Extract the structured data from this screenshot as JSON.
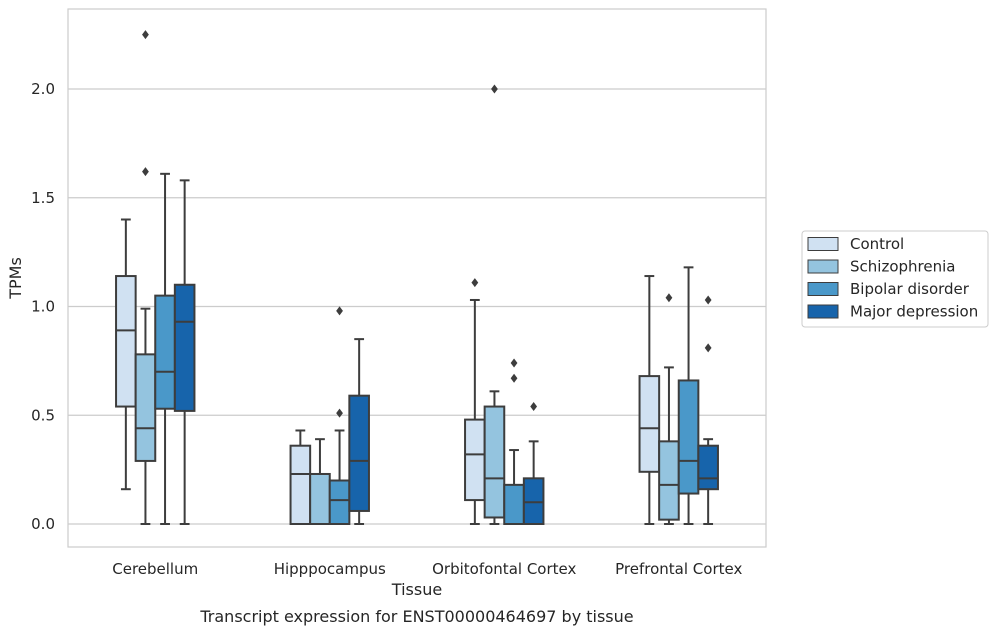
{
  "chart_data": {
    "type": "boxplot",
    "title": "",
    "caption": "Transcript expression for ENST00000464697 by tissue",
    "xlabel": "Tissue",
    "ylabel": "TPMs",
    "ylim": [
      -0.11,
      2.37
    ],
    "yticks": [
      0.0,
      0.5,
      1.0,
      1.5,
      2.0
    ],
    "ytick_labels": [
      "0.0",
      "0.5",
      "1.0",
      "1.5",
      "2.0"
    ],
    "grid": "horizontal",
    "legend_position": "right",
    "categories": [
      "Cerebellum",
      "Hipppocampus",
      "Orbitofontal Cortex",
      "Prefrontal Cortex"
    ],
    "series": [
      {
        "name": "Control",
        "color": "#d0e1f2",
        "boxes": [
          {
            "whislo": 0.16,
            "q1": 0.54,
            "med": 0.89,
            "q3": 1.14,
            "whishi": 1.4,
            "fliers": []
          },
          {
            "whislo": 0.0,
            "q1": 0.0,
            "med": 0.23,
            "q3": 0.36,
            "whishi": 0.43,
            "fliers": []
          },
          {
            "whislo": 0.0,
            "q1": 0.11,
            "med": 0.32,
            "q3": 0.48,
            "whishi": 1.03,
            "fliers": [
              1.11
            ]
          },
          {
            "whislo": 0.0,
            "q1": 0.24,
            "med": 0.44,
            "q3": 0.68,
            "whishi": 1.14,
            "fliers": []
          }
        ]
      },
      {
        "name": "Schizophrenia",
        "color": "#94c4df",
        "boxes": [
          {
            "whislo": 0.0,
            "q1": 0.29,
            "med": 0.44,
            "q3": 0.78,
            "whishi": 0.99,
            "fliers": [
              1.62,
              2.25
            ]
          },
          {
            "whislo": 0.0,
            "q1": 0.0,
            "med": 0.23,
            "q3": 0.23,
            "whishi": 0.39,
            "fliers": []
          },
          {
            "whislo": 0.0,
            "q1": 0.03,
            "med": 0.21,
            "q3": 0.54,
            "whishi": 0.61,
            "fliers": [
              2.0
            ]
          },
          {
            "whislo": 0.0,
            "q1": 0.02,
            "med": 0.18,
            "q3": 0.38,
            "whishi": 0.72,
            "fliers": [
              1.04
            ]
          }
        ]
      },
      {
        "name": "Bipolar disorder",
        "color": "#4a98c9",
        "boxes": [
          {
            "whislo": 0.0,
            "q1": 0.53,
            "med": 0.7,
            "q3": 1.05,
            "whishi": 1.61,
            "fliers": []
          },
          {
            "whislo": 0.0,
            "q1": 0.0,
            "med": 0.11,
            "q3": 0.2,
            "whishi": 0.43,
            "fliers": [
              0.51,
              0.98
            ]
          },
          {
            "whislo": 0.0,
            "q1": 0.0,
            "med": 0.0,
            "q3": 0.18,
            "whishi": 0.34,
            "fliers": [
              0.67,
              0.74
            ]
          },
          {
            "whislo": 0.0,
            "q1": 0.14,
            "med": 0.29,
            "q3": 0.66,
            "whishi": 1.18,
            "fliers": []
          }
        ]
      },
      {
        "name": "Major depression",
        "color": "#1764ab",
        "boxes": [
          {
            "whislo": 0.0,
            "q1": 0.52,
            "med": 0.93,
            "q3": 1.1,
            "whishi": 1.58,
            "fliers": []
          },
          {
            "whislo": 0.0,
            "q1": 0.06,
            "med": 0.29,
            "q3": 0.59,
            "whishi": 0.85,
            "fliers": []
          },
          {
            "whislo": 0.0,
            "q1": 0.0,
            "med": 0.1,
            "q3": 0.21,
            "whishi": 0.38,
            "fliers": [
              0.54
            ]
          },
          {
            "whislo": 0.0,
            "q1": 0.16,
            "med": 0.21,
            "q3": 0.36,
            "whishi": 0.39,
            "fliers": [
              0.81,
              1.03
            ]
          }
        ]
      }
    ]
  }
}
